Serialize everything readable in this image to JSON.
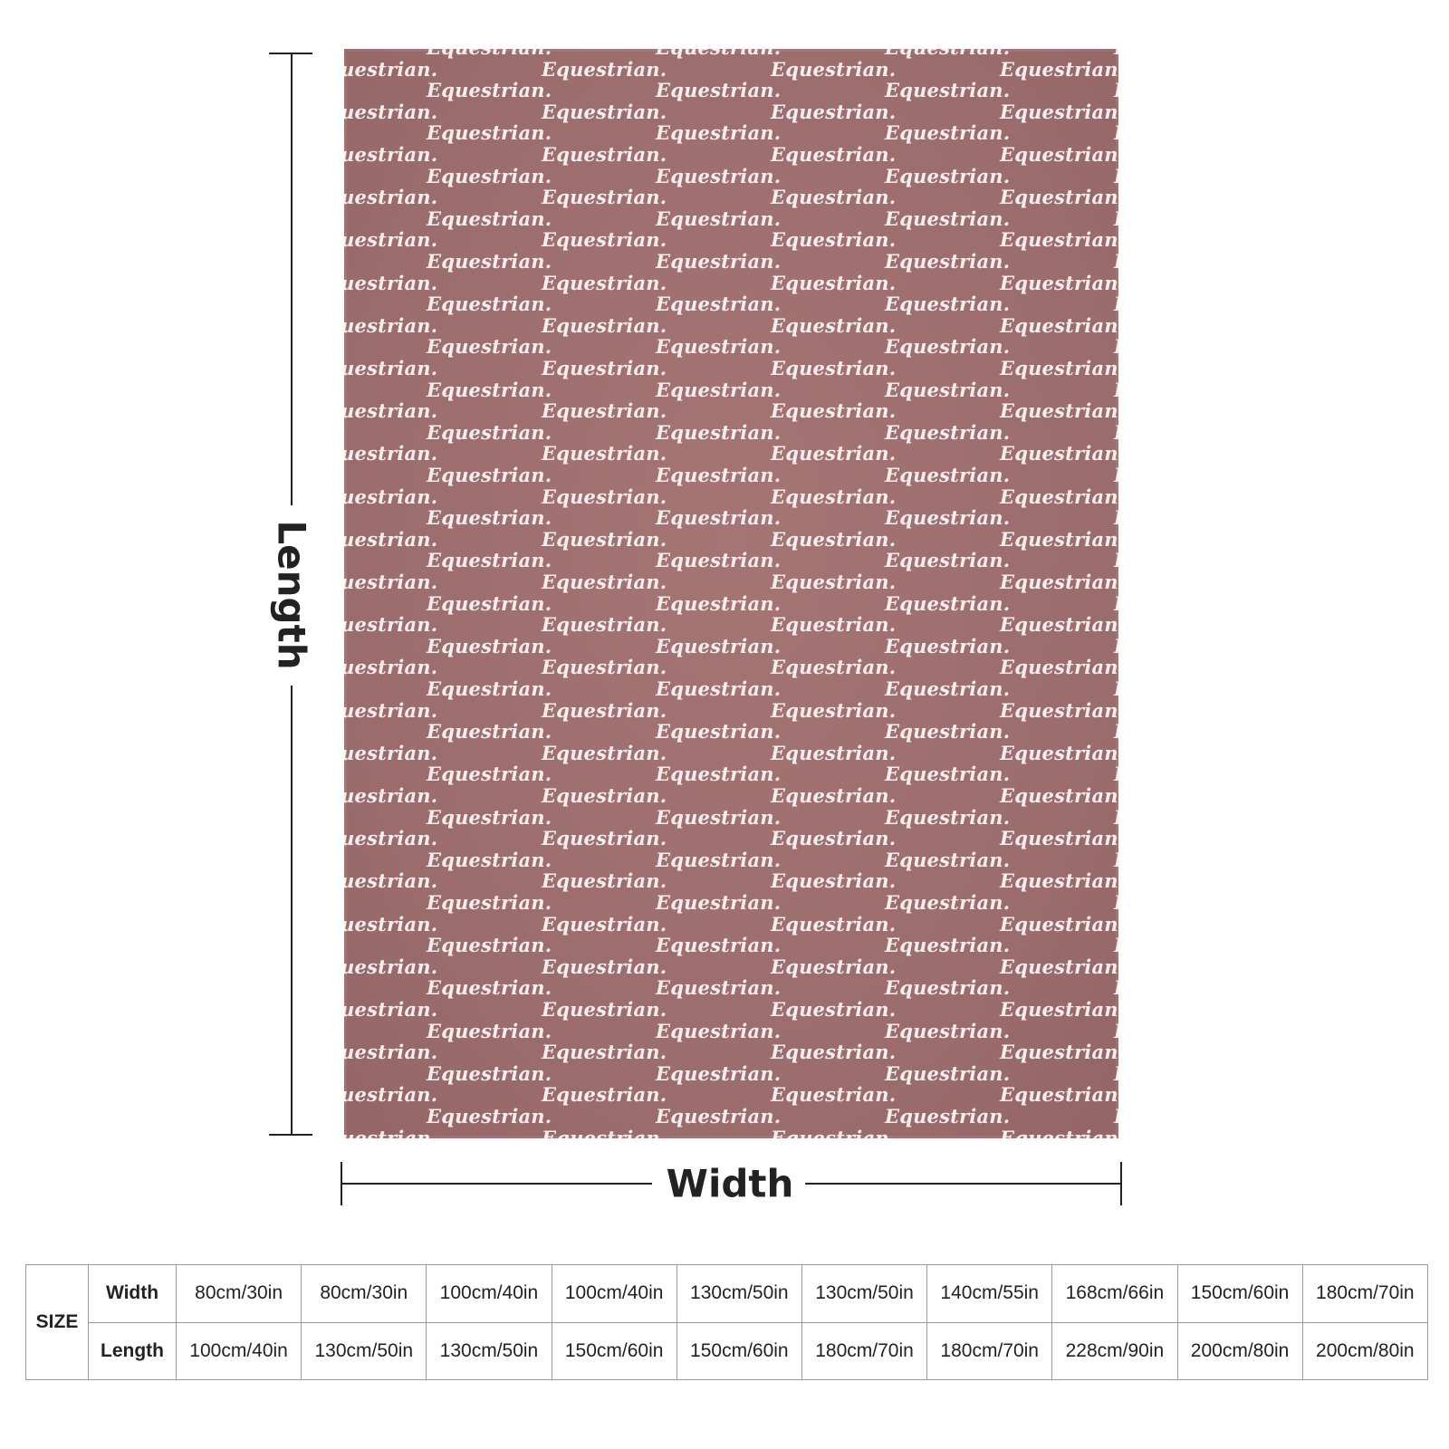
{
  "blanket": {
    "pattern_text": "Equestrian.",
    "background_color": "#9b6c6c",
    "text_color": "#f6eeee"
  },
  "dimensions": {
    "length_label": "Length",
    "width_label": "Width"
  },
  "size_table": {
    "corner_label": "SIZE",
    "rows": [
      {
        "label": "Width",
        "values": [
          "80cm/30in",
          "80cm/30in",
          "100cm/40in",
          "100cm/40in",
          "130cm/50in",
          "130cm/50in",
          "140cm/55in",
          "168cm/66in",
          "150cm/60in",
          "180cm/70in"
        ]
      },
      {
        "label": "Length",
        "values": [
          "100cm/40in",
          "130cm/50in",
          "130cm/50in",
          "150cm/60in",
          "150cm/60in",
          "180cm/70in",
          "180cm/70in",
          "228cm/90in",
          "200cm/80in",
          "200cm/80in"
        ]
      }
    ]
  }
}
